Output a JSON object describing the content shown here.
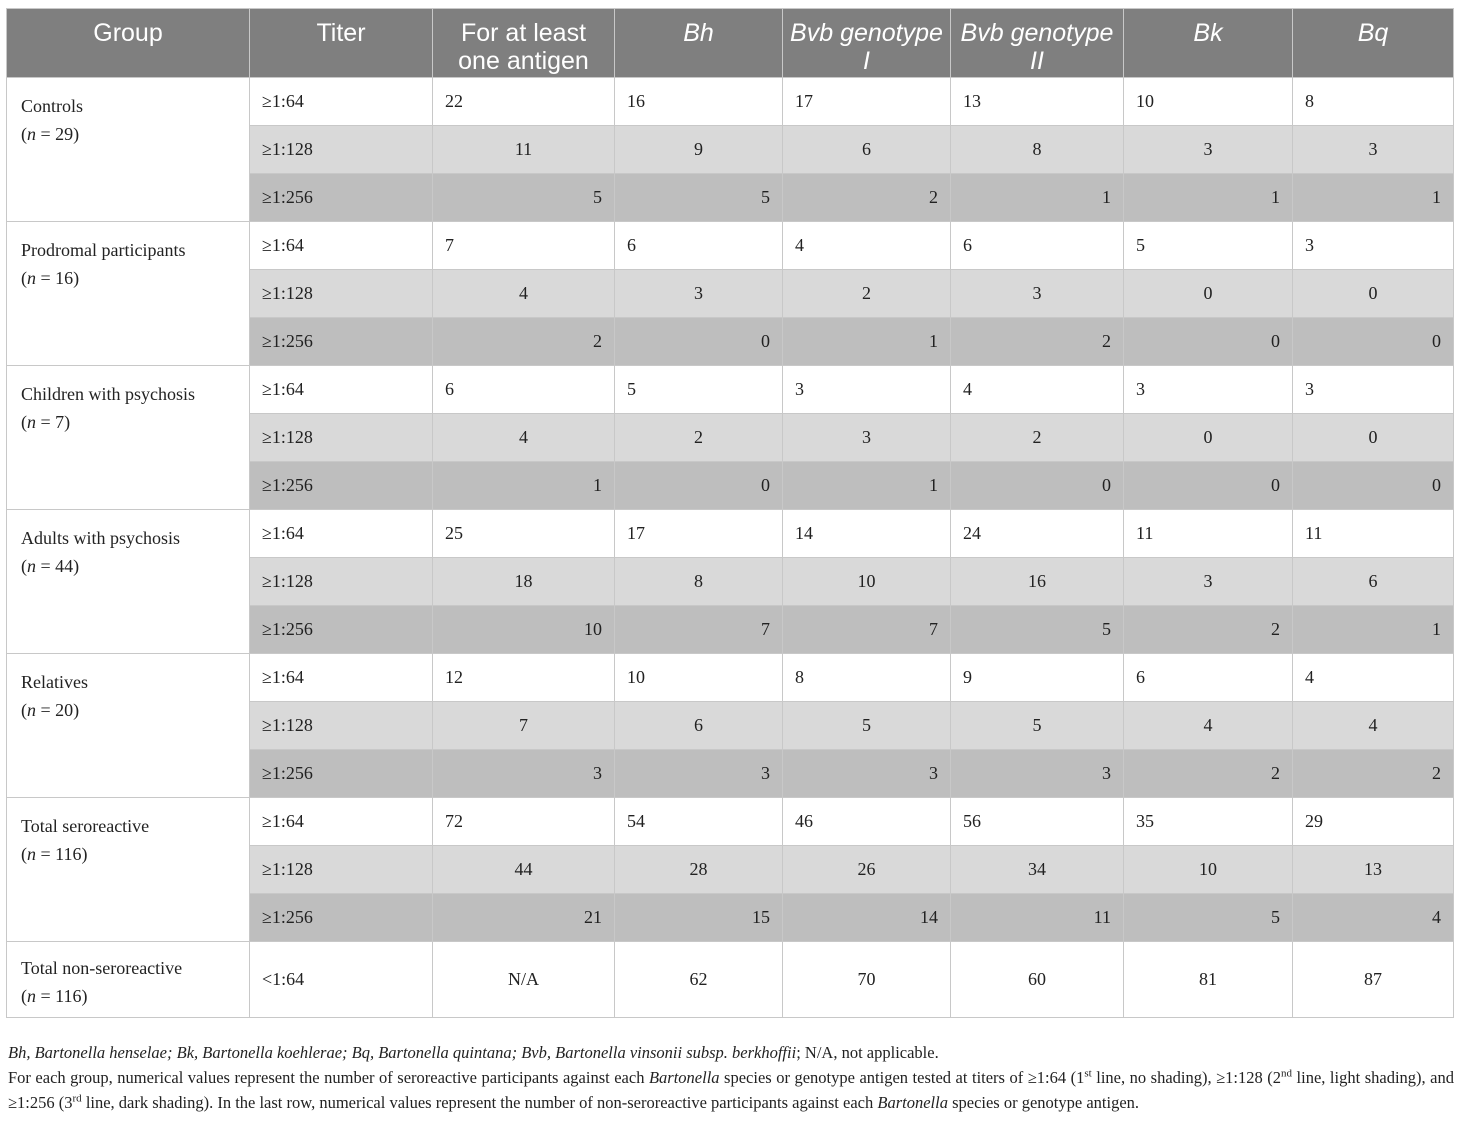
{
  "headers": [
    {
      "text": "Group",
      "italic": false
    },
    {
      "text": "Titer",
      "italic": false
    },
    {
      "text": "For at least one antigen",
      "italic": false
    },
    {
      "text": "Bh",
      "italic": true
    },
    {
      "text": "Bvb genotype I",
      "italic": true
    },
    {
      "text": "Bvb genotype II",
      "italic": true
    },
    {
      "text": "Bk",
      "italic": true
    },
    {
      "text": "Bq",
      "italic": true
    }
  ],
  "groups": [
    {
      "name": "Controls",
      "n_label": "n",
      "n_value": " = 29)",
      "rows": [
        {
          "titer": "≥1:64",
          "values": [
            "22",
            "16",
            "17",
            "13",
            "10",
            "8"
          ]
        },
        {
          "titer": "≥1:128",
          "values": [
            "11",
            "9",
            "6",
            "8",
            "3",
            "3"
          ]
        },
        {
          "titer": "≥1:256",
          "values": [
            "5",
            "5",
            "2",
            "1",
            "1",
            "1"
          ]
        }
      ]
    },
    {
      "name": "Prodromal participants",
      "n_label": "n",
      "n_value": " = 16)",
      "rows": [
        {
          "titer": "≥1:64",
          "values": [
            "7",
            "6",
            "4",
            "6",
            "5",
            "3"
          ]
        },
        {
          "titer": "≥1:128",
          "values": [
            "4",
            "3",
            "2",
            "3",
            "0",
            "0"
          ]
        },
        {
          "titer": "≥1:256",
          "values": [
            "2",
            "0",
            "1",
            "2",
            "0",
            "0"
          ]
        }
      ]
    },
    {
      "name": "Children with psychosis",
      "n_label": "n",
      "n_value": " = 7)",
      "rows": [
        {
          "titer": "≥1:64",
          "values": [
            "6",
            "5",
            "3",
            "4",
            "3",
            "3"
          ]
        },
        {
          "titer": "≥1:128",
          "values": [
            "4",
            "2",
            "3",
            "2",
            "0",
            "0"
          ]
        },
        {
          "titer": "≥1:256",
          "values": [
            "1",
            "0",
            "1",
            "0",
            "0",
            "0"
          ]
        }
      ]
    },
    {
      "name": "Adults with psychosis",
      "n_label": "n",
      "n_value": " = 44)",
      "rows": [
        {
          "titer": "≥1:64",
          "values": [
            "25",
            "17",
            "14",
            "24",
            "11",
            "11"
          ]
        },
        {
          "titer": "≥1:128",
          "values": [
            "18",
            "8",
            "10",
            "16",
            "3",
            "6"
          ]
        },
        {
          "titer": "≥1:256",
          "values": [
            "10",
            "7",
            "7",
            "5",
            "2",
            "1"
          ]
        }
      ]
    },
    {
      "name": "Relatives",
      "n_label": "n",
      "n_value": " = 20)",
      "rows": [
        {
          "titer": "≥1:64",
          "values": [
            "12",
            "10",
            "8",
            "9",
            "6",
            "4"
          ]
        },
        {
          "titer": "≥1:128",
          "values": [
            "7",
            "6",
            "5",
            "5",
            "4",
            "4"
          ]
        },
        {
          "titer": "≥1:256",
          "values": [
            "3",
            "3",
            "3",
            "3",
            "2",
            "2"
          ]
        }
      ]
    },
    {
      "name": "Total seroreactive",
      "n_label": "n",
      "n_value": " = 116)",
      "rows": [
        {
          "titer": "≥1:64",
          "values": [
            "72",
            "54",
            "46",
            "56",
            "35",
            "29"
          ]
        },
        {
          "titer": "≥1:128",
          "values": [
            "44",
            "28",
            "26",
            "34",
            "10",
            "13"
          ]
        },
        {
          "titer": "≥1:256",
          "values": [
            "21",
            "15",
            "14",
            "11",
            "5",
            "4"
          ]
        }
      ]
    }
  ],
  "last_row": {
    "name": "Total non-seroreactive",
    "n_label": "n",
    "n_value": " = 116)",
    "titer": "<1:64",
    "values": [
      "N/A",
      "62",
      "70",
      "60",
      "81",
      "87"
    ]
  },
  "footnote": {
    "abbrev": "Bh, Bartonella henselae; Bk, Bartonella koehlerae; Bq, Bartonella quintana; Bvb, Bartonella vinsonii subsp. berkhoffii",
    "abbrev_tail": "; N/A, not applicable.",
    "p2_a": "For each group, numerical values represent the number of seroreactive participants against each ",
    "p2_b": "Bartonella",
    "p2_c": " species or genotype antigen tested at titers of ≥1:64 (1",
    "sup1": "st",
    "p2_d": " line, no shading), ≥1:128 (2",
    "sup2": "nd",
    "p2_e": " line, light shading), and ≥1:256 (3",
    "sup3": "rd",
    "p2_f": " line, dark shading). In the last row, numerical values represent the number of non-seroreactive participants against each ",
    "p2_g": "Bartonella",
    "p2_h": " species or genotype antigen."
  }
}
